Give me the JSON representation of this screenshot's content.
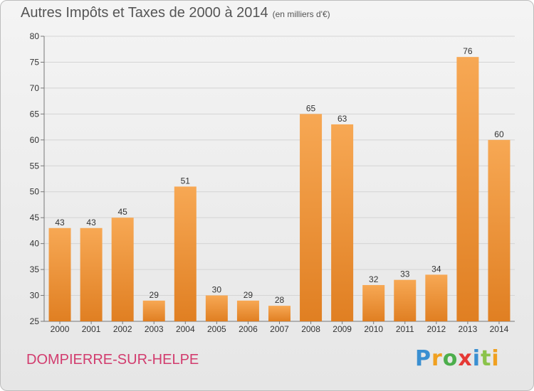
{
  "header": {
    "title": "Autres Impôts et Taxes de 2000 à 2014",
    "unit": "(en milliers d'€)"
  },
  "commune": "DOMPIERRE-SUR-HELPE",
  "logo": {
    "letters": [
      "P",
      "r",
      "o",
      "x",
      "i",
      "t",
      "i"
    ],
    "colors": [
      "#3a8fd1",
      "#f0a020",
      "#4cae4c",
      "#e53935",
      "#3a8fd1",
      "#8bc34a",
      "#f0a020"
    ]
  },
  "colors": {
    "bar_light": "#f7a854",
    "bar_dark": "#e07f22",
    "grid": "#d4d4d4",
    "axis_text": "#333333"
  },
  "chart_data": {
    "type": "bar",
    "title": "Autres Impôts et Taxes de 2000 à 2014",
    "xlabel": "",
    "ylabel": "",
    "categories": [
      "2000",
      "2001",
      "2002",
      "2003",
      "2004",
      "2005",
      "2006",
      "2007",
      "2008",
      "2009",
      "2010",
      "2011",
      "2012",
      "2013",
      "2014"
    ],
    "values": [
      43,
      43,
      45,
      29,
      51,
      30,
      29,
      28,
      65,
      63,
      32,
      33,
      34,
      76,
      60
    ],
    "data_labels": [
      "43",
      "43",
      "45",
      "29",
      "51",
      "30",
      "29",
      "28",
      "65",
      "63",
      "32",
      "33",
      "34",
      "76",
      "60"
    ],
    "ylim": [
      25,
      80
    ],
    "yticks": [
      25,
      30,
      35,
      40,
      45,
      50,
      55,
      60,
      65,
      70,
      75,
      80
    ],
    "grid": true
  }
}
